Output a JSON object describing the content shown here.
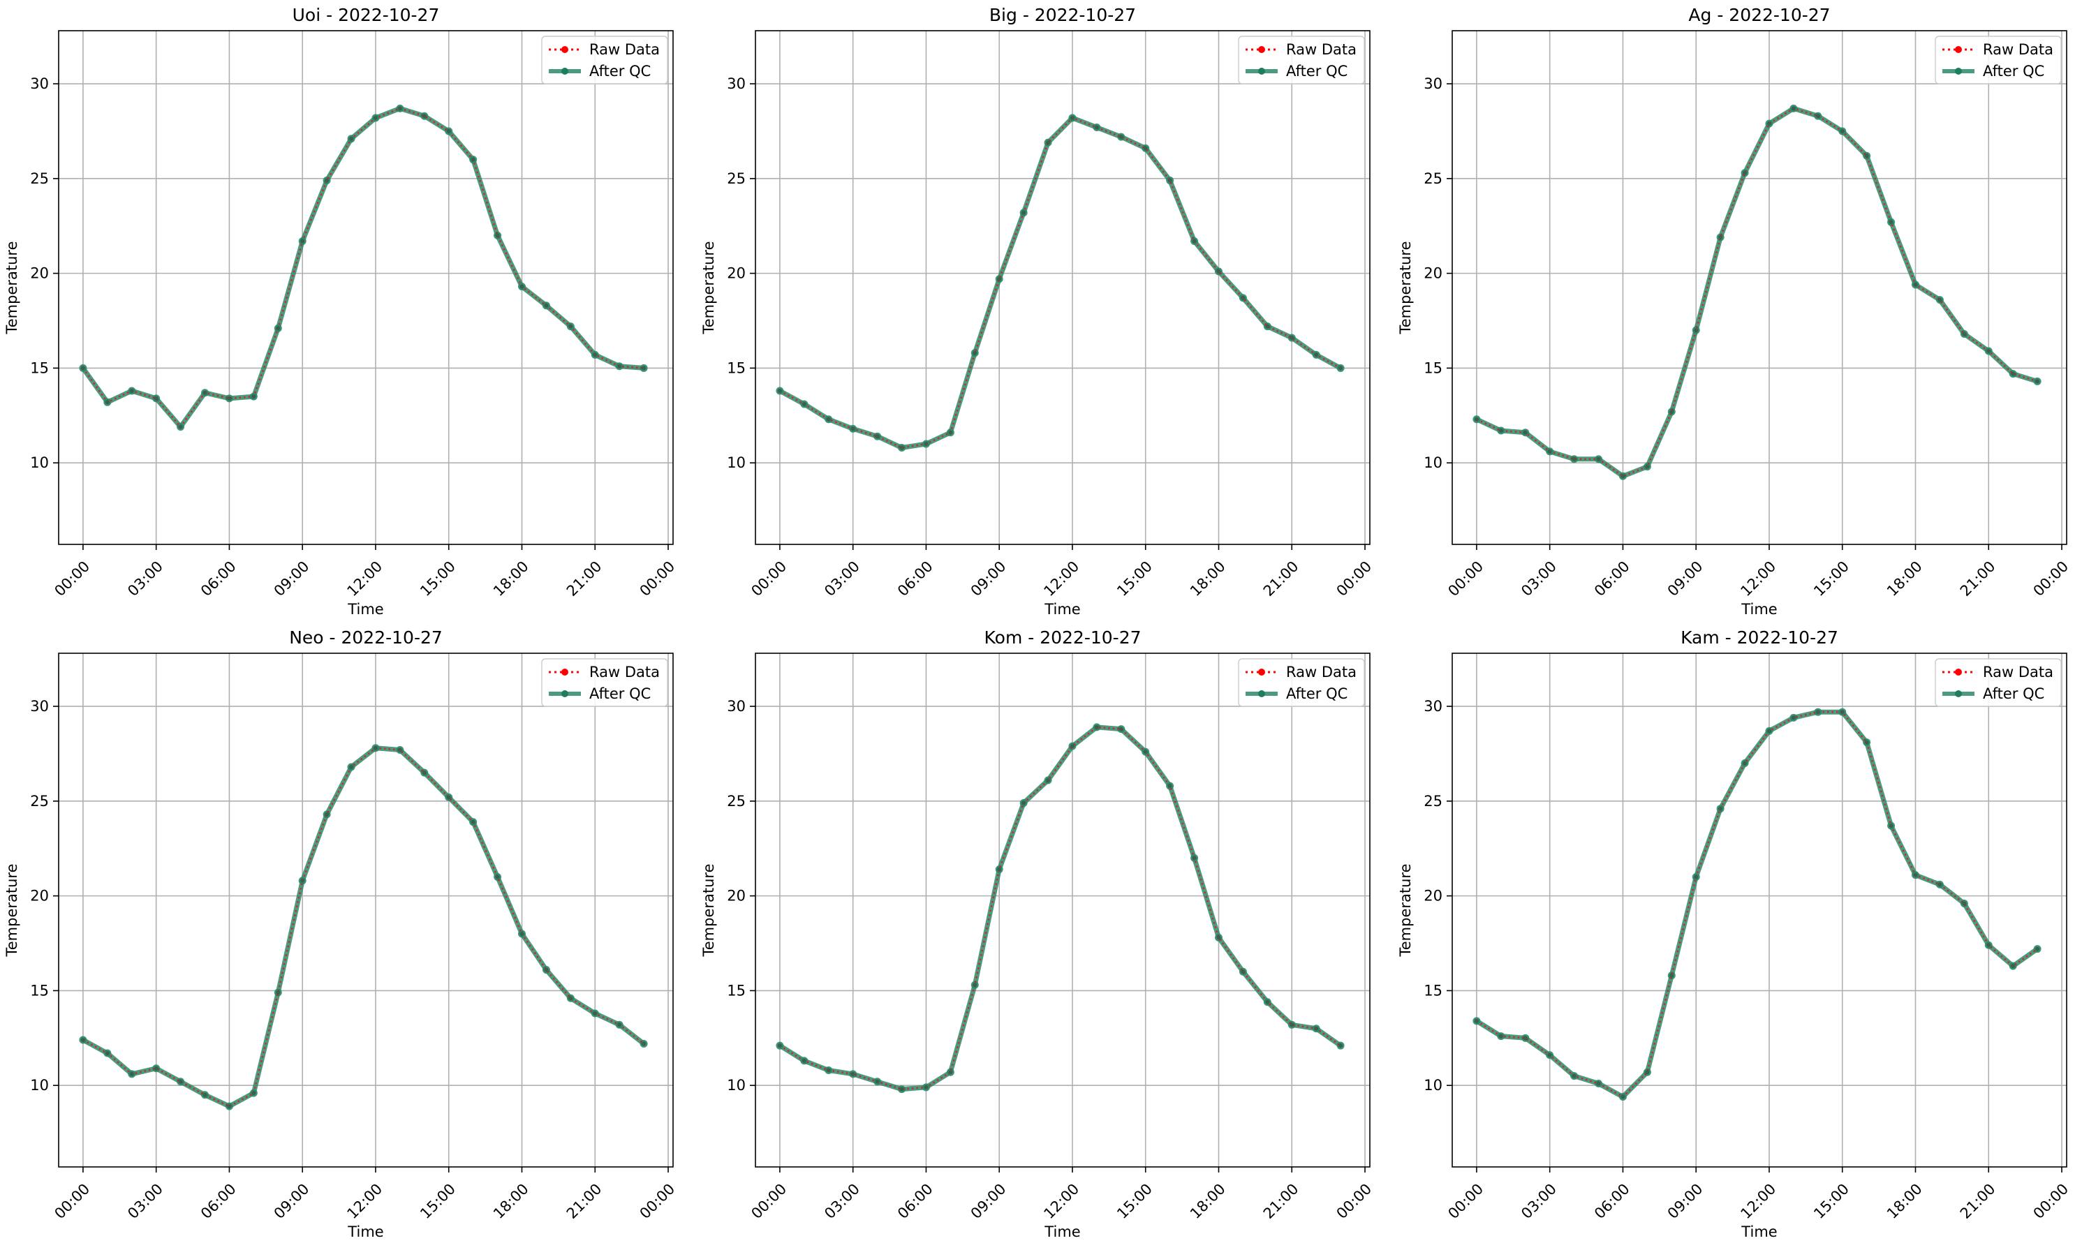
{
  "colors": {
    "raw": "#ff0000",
    "qc": "#2a8a6a",
    "qc_line": "#1f7d5f",
    "grid": "#b0b0b0",
    "axes": "#000000"
  },
  "chart_data": [
    {
      "type": "line",
      "title": "Uoi - 2022-10-27",
      "xlabel": "Time",
      "ylabel": "Temperature",
      "x": [
        0,
        1,
        2,
        3,
        4,
        5,
        6,
        7,
        8,
        9,
        10,
        11,
        12,
        13,
        14,
        15,
        16,
        17,
        18,
        19,
        20,
        21,
        22,
        23
      ],
      "xlim": [
        -1,
        24.2
      ],
      "ylim": [
        5.7,
        32.8
      ],
      "xticks": [
        "00:00",
        "03:00",
        "06:00",
        "09:00",
        "12:00",
        "15:00",
        "18:00",
        "21:00",
        "00:00"
      ],
      "yticks": [
        "10",
        "15",
        "20",
        "25",
        "30"
      ],
      "grid": true,
      "legend": "top-right",
      "series": [
        {
          "name": "Raw Data",
          "style": "dotted",
          "values": [
            15.0,
            13.2,
            13.8,
            13.4,
            11.9,
            13.7,
            13.4,
            13.5,
            17.1,
            21.7,
            24.9,
            27.1,
            28.2,
            28.7,
            28.3,
            27.5,
            26.0,
            22.0,
            19.3,
            18.3,
            17.2,
            15.7,
            15.1,
            15.0
          ]
        },
        {
          "name": "After QC",
          "style": "solid",
          "values": [
            15.0,
            13.2,
            13.8,
            13.4,
            11.9,
            13.7,
            13.4,
            13.5,
            17.1,
            21.7,
            24.9,
            27.1,
            28.2,
            28.7,
            28.3,
            27.5,
            26.0,
            22.0,
            19.3,
            18.3,
            17.2,
            15.7,
            15.1,
            15.0
          ]
        }
      ]
    },
    {
      "type": "line",
      "title": "Big - 2022-10-27",
      "xlabel": "Time",
      "ylabel": "Temperature",
      "x": [
        0,
        1,
        2,
        3,
        4,
        5,
        6,
        7,
        8,
        9,
        10,
        11,
        12,
        13,
        14,
        15,
        16,
        17,
        18,
        19,
        20,
        21,
        22,
        23
      ],
      "xlim": [
        -1,
        24.2
      ],
      "ylim": [
        5.7,
        32.8
      ],
      "xticks": [
        "00:00",
        "03:00",
        "06:00",
        "09:00",
        "12:00",
        "15:00",
        "18:00",
        "21:00",
        "00:00"
      ],
      "yticks": [
        "10",
        "15",
        "20",
        "25",
        "30"
      ],
      "grid": true,
      "legend": "top-right",
      "series": [
        {
          "name": "Raw Data",
          "style": "dotted",
          "values": [
            13.8,
            13.1,
            12.3,
            11.8,
            11.4,
            10.8,
            11.0,
            11.6,
            15.8,
            19.7,
            23.2,
            26.9,
            28.2,
            27.7,
            27.2,
            26.6,
            24.9,
            21.7,
            20.1,
            18.7,
            17.2,
            16.6,
            15.7,
            15.0
          ]
        },
        {
          "name": "After QC",
          "style": "solid",
          "values": [
            13.8,
            13.1,
            12.3,
            11.8,
            11.4,
            10.8,
            11.0,
            11.6,
            15.8,
            19.7,
            23.2,
            26.9,
            28.2,
            27.7,
            27.2,
            26.6,
            24.9,
            21.7,
            20.1,
            18.7,
            17.2,
            16.6,
            15.7,
            15.0
          ]
        }
      ]
    },
    {
      "type": "line",
      "title": "Ag - 2022-10-27",
      "xlabel": "Time",
      "ylabel": "Temperature",
      "x": [
        0,
        1,
        2,
        3,
        4,
        5,
        6,
        7,
        8,
        9,
        10,
        11,
        12,
        13,
        14,
        15,
        16,
        17,
        18,
        19,
        20,
        21,
        22,
        23
      ],
      "xlim": [
        -1,
        24.2
      ],
      "ylim": [
        5.7,
        32.8
      ],
      "xticks": [
        "00:00",
        "03:00",
        "06:00",
        "09:00",
        "12:00",
        "15:00",
        "18:00",
        "21:00",
        "00:00"
      ],
      "yticks": [
        "10",
        "15",
        "20",
        "25",
        "30"
      ],
      "grid": true,
      "legend": "top-right",
      "series": [
        {
          "name": "Raw Data",
          "style": "dotted",
          "values": [
            12.3,
            11.7,
            11.6,
            10.6,
            10.2,
            10.2,
            9.3,
            9.8,
            12.7,
            17.0,
            21.9,
            25.3,
            27.9,
            28.7,
            28.3,
            27.5,
            26.2,
            22.7,
            19.4,
            18.6,
            16.8,
            15.9,
            14.7,
            14.3
          ]
        },
        {
          "name": "After QC",
          "style": "solid",
          "values": [
            12.3,
            11.7,
            11.6,
            10.6,
            10.2,
            10.2,
            9.3,
            9.8,
            12.7,
            17.0,
            21.9,
            25.3,
            27.9,
            28.7,
            28.3,
            27.5,
            26.2,
            22.7,
            19.4,
            18.6,
            16.8,
            15.9,
            14.7,
            14.3
          ]
        }
      ]
    },
    {
      "type": "line",
      "title": "Neo - 2022-10-27",
      "xlabel": "Time",
      "ylabel": "Temperature",
      "x": [
        0,
        1,
        2,
        3,
        4,
        5,
        6,
        7,
        8,
        9,
        10,
        11,
        12,
        13,
        14,
        15,
        16,
        17,
        18,
        19,
        20,
        21,
        22,
        23
      ],
      "xlim": [
        -1,
        24.2
      ],
      "ylim": [
        5.7,
        32.8
      ],
      "xticks": [
        "00:00",
        "03:00",
        "06:00",
        "09:00",
        "12:00",
        "15:00",
        "18:00",
        "21:00",
        "00:00"
      ],
      "yticks": [
        "10",
        "15",
        "20",
        "25",
        "30"
      ],
      "grid": true,
      "legend": "top-right",
      "series": [
        {
          "name": "Raw Data",
          "style": "dotted",
          "values": [
            12.4,
            11.7,
            10.6,
            10.9,
            10.2,
            9.5,
            8.9,
            9.6,
            14.9,
            20.8,
            24.3,
            26.8,
            27.8,
            27.7,
            26.5,
            25.2,
            23.9,
            21.0,
            18.0,
            16.1,
            14.6,
            13.8,
            13.2,
            12.2
          ]
        },
        {
          "name": "After QC",
          "style": "solid",
          "values": [
            12.4,
            11.7,
            10.6,
            10.9,
            10.2,
            9.5,
            8.9,
            9.6,
            14.9,
            20.8,
            24.3,
            26.8,
            27.8,
            27.7,
            26.5,
            25.2,
            23.9,
            21.0,
            18.0,
            16.1,
            14.6,
            13.8,
            13.2,
            12.2
          ]
        }
      ]
    },
    {
      "type": "line",
      "title": "Kom - 2022-10-27",
      "xlabel": "Time",
      "ylabel": "Temperature",
      "x": [
        0,
        1,
        2,
        3,
        4,
        5,
        6,
        7,
        8,
        9,
        10,
        11,
        12,
        13,
        14,
        15,
        16,
        17,
        18,
        19,
        20,
        21,
        22,
        23
      ],
      "xlim": [
        -1,
        24.2
      ],
      "ylim": [
        5.7,
        32.8
      ],
      "xticks": [
        "00:00",
        "03:00",
        "06:00",
        "09:00",
        "12:00",
        "15:00",
        "18:00",
        "21:00",
        "00:00"
      ],
      "yticks": [
        "10",
        "15",
        "20",
        "25",
        "30"
      ],
      "grid": true,
      "legend": "top-right",
      "series": [
        {
          "name": "Raw Data",
          "style": "dotted",
          "values": [
            12.1,
            11.3,
            10.8,
            10.6,
            10.2,
            9.8,
            9.9,
            10.7,
            15.3,
            21.4,
            24.9,
            26.1,
            27.9,
            28.9,
            28.8,
            27.6,
            25.8,
            22.0,
            17.8,
            16.0,
            14.4,
            13.2,
            13.0,
            12.1
          ]
        },
        {
          "name": "After QC",
          "style": "solid",
          "values": [
            12.1,
            11.3,
            10.8,
            10.6,
            10.2,
            9.8,
            9.9,
            10.7,
            15.3,
            21.4,
            24.9,
            26.1,
            27.9,
            28.9,
            28.8,
            27.6,
            25.8,
            22.0,
            17.8,
            16.0,
            14.4,
            13.2,
            13.0,
            12.1
          ]
        }
      ]
    },
    {
      "type": "line",
      "title": "Kam - 2022-10-27",
      "xlabel": "Time",
      "ylabel": "Temperature",
      "x": [
        0,
        1,
        2,
        3,
        4,
        5,
        6,
        7,
        8,
        9,
        10,
        11,
        12,
        13,
        14,
        15,
        16,
        17,
        18,
        19,
        20,
        21,
        22,
        23
      ],
      "xlim": [
        -1,
        24.2
      ],
      "ylim": [
        5.7,
        32.8
      ],
      "xticks": [
        "00:00",
        "03:00",
        "06:00",
        "09:00",
        "12:00",
        "15:00",
        "18:00",
        "21:00",
        "00:00"
      ],
      "yticks": [
        "10",
        "15",
        "20",
        "25",
        "30"
      ],
      "grid": true,
      "legend": "top-right",
      "series": [
        {
          "name": "Raw Data",
          "style": "dotted",
          "values": [
            13.4,
            12.6,
            12.5,
            11.6,
            10.5,
            10.1,
            9.4,
            10.7,
            15.8,
            21.0,
            24.6,
            27.0,
            28.7,
            29.4,
            29.7,
            29.7,
            28.1,
            23.7,
            21.1,
            20.6,
            19.6,
            17.4,
            16.3,
            17.2
          ]
        },
        {
          "name": "After QC",
          "style": "solid",
          "values": [
            13.4,
            12.6,
            12.5,
            11.6,
            10.5,
            10.1,
            9.4,
            10.7,
            15.8,
            21.0,
            24.6,
            27.0,
            28.7,
            29.4,
            29.7,
            29.7,
            28.1,
            23.7,
            21.1,
            20.6,
            19.6,
            17.4,
            16.3,
            17.2
          ]
        }
      ]
    }
  ]
}
